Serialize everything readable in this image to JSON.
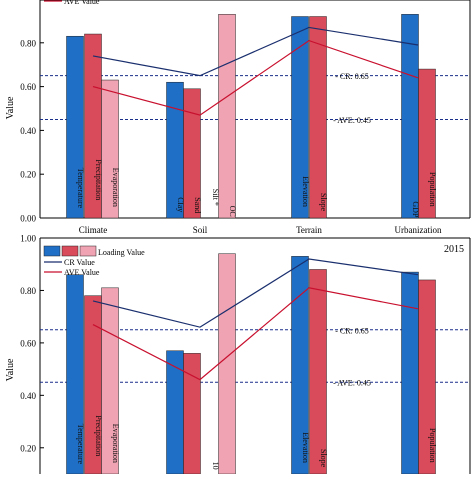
{
  "chart_data": [
    {
      "type": "bar",
      "ylabel": "Value",
      "ylim": [
        0,
        1.0
      ],
      "yticks": [
        "0.00",
        "0.20",
        "0.40",
        "0.60",
        "0.80"
      ],
      "groups": [
        "Climate",
        "Soil",
        "Terrain",
        "Urbanization"
      ],
      "legend": {
        "line_label_visible": "AVE Value"
      },
      "bars": [
        {
          "label": "Temperature",
          "value": 0.83,
          "color": "#1f6fc6",
          "group": "Climate"
        },
        {
          "label": "Precipitation",
          "value": 0.84,
          "color": "#d94a5a",
          "group": "Climate"
        },
        {
          "label": "Evaporation",
          "value": 0.63,
          "color": "#f0a3b3",
          "group": "Climate"
        },
        {
          "label": "Clay",
          "value": 0.62,
          "color": "#1f6fc6",
          "group": "Soil"
        },
        {
          "label": "Sand",
          "value": 0.59,
          "color": "#d94a5a",
          "group": "Soil"
        },
        {
          "label": "Silt *",
          "value": 0.0,
          "color": "#f0a3b3",
          "group": "Soil"
        },
        {
          "label": "OC",
          "value": 0.93,
          "color": "#f0a3b3",
          "group": "Soil"
        },
        {
          "label": "Elevation",
          "value": 0.92,
          "color": "#1f6fc6",
          "group": "Terrain"
        },
        {
          "label": "Slope",
          "value": 0.92,
          "color": "#d94a5a",
          "group": "Terrain"
        },
        {
          "label": "GDP",
          "value": 0.93,
          "color": "#1f6fc6",
          "group": "Urbanization"
        },
        {
          "label": "Population",
          "value": 0.68,
          "color": "#d94a5a",
          "group": "Urbanization"
        }
      ],
      "cr_line": [
        0.74,
        0.65,
        0.87,
        0.79
      ],
      "ave_line": [
        0.6,
        0.47,
        0.81,
        0.64
      ],
      "thresholds": [
        {
          "label": "CR: 0.65",
          "value": 0.65
        },
        {
          "label": "AVE: 0.45",
          "value": 0.45
        }
      ]
    },
    {
      "type": "bar",
      "ylabel": "Value",
      "year": "2015",
      "ylim": [
        0,
        1.0
      ],
      "yticks": [
        "0.20",
        "0.40",
        "0.60",
        "0.80",
        "1.00"
      ],
      "legend": {
        "bars_label": "Loading Value",
        "cr_label": "CR Value",
        "ave_label": "AVE Value"
      },
      "bars": [
        {
          "label": "Temperature",
          "value": 0.86,
          "color": "#1f6fc6",
          "group": "Climate"
        },
        {
          "label": "Precipitation",
          "value": 0.78,
          "color": "#d94a5a",
          "group": "Climate"
        },
        {
          "label": "Evaporation",
          "value": 0.81,
          "color": "#f0a3b3",
          "group": "Climate"
        },
        {
          "label": "",
          "value": 0.57,
          "color": "#1f6fc6",
          "group": "Soil"
        },
        {
          "label": "",
          "value": 0.56,
          "color": "#d94a5a",
          "group": "Soil"
        },
        {
          "label": "10",
          "value": 0.0,
          "color": "#f0a3b3",
          "group": "Soil"
        },
        {
          "label": "",
          "value": 0.94,
          "color": "#f0a3b3",
          "group": "Soil"
        },
        {
          "label": "Elevation",
          "value": 0.93,
          "color": "#1f6fc6",
          "group": "Terrain"
        },
        {
          "label": "Slope",
          "value": 0.88,
          "color": "#d94a5a",
          "group": "Terrain"
        },
        {
          "label": "",
          "value": 0.87,
          "color": "#1f6fc6",
          "group": "Urbanization"
        },
        {
          "label": "Population",
          "value": 0.84,
          "color": "#d94a5a",
          "group": "Urbanization"
        }
      ],
      "cr_line": [
        0.76,
        0.66,
        0.92,
        0.86
      ],
      "ave_line": [
        0.67,
        0.46,
        0.81,
        0.73
      ],
      "thresholds": [
        {
          "label": "CR: 0.65",
          "value": 0.65
        },
        {
          "label": "AVE: 0.45",
          "value": 0.45
        }
      ]
    }
  ]
}
